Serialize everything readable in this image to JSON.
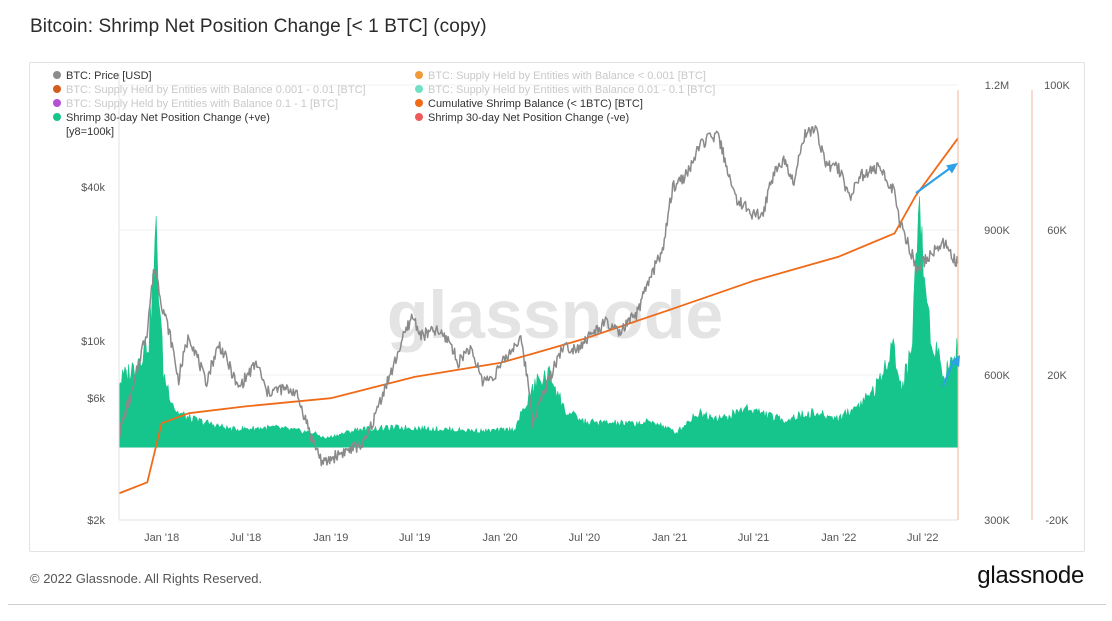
{
  "page": {
    "title": "Bitcoin: Shrimp Net Position Change [< 1 BTC] (copy)",
    "footer_copyright": "© 2022 Glassnode. All Rights Reserved.",
    "footer_logo": "glassnode"
  },
  "colors": {
    "price": "#8a8a8a",
    "cumulative": "#f06a18",
    "positive": "#16c58c",
    "negative": "#ef5b5b",
    "axis_line": "#f3b39a",
    "arrow": "#2f9fe6"
  },
  "legend": [
    {
      "label": "BTC: Price [USD]",
      "color": "#8c8c8c",
      "faded": false
    },
    {
      "label": "BTC: Supply Held by Entities with Balance < 0.001 [BTC]",
      "color": "#f29a3b",
      "faded": true
    },
    {
      "label": "BTC: Supply Held by Entities with Balance 0.001 - 0.01 [BTC]",
      "color": "#d45c1c",
      "faded": true
    },
    {
      "label": "BTC: Supply Held by Entities with Balance 0.01 - 0.1 [BTC]",
      "color": "#6fe0c3",
      "faded": true
    },
    {
      "label": "BTC: Supply Held by Entities with Balance 0.1 - 1 [BTC]",
      "color": "#b54fd6",
      "faded": true
    },
    {
      "label": "Cumulative Shrimp Balance (< 1BTC) [BTC]",
      "color": "#f06a18",
      "faded": false
    },
    {
      "label": "Shrimp 30-day Net Position Change (+ve)",
      "color": "#16c58c",
      "faded": false
    },
    {
      "label": "Shrimp 30-day Net Position Change (-ve)",
      "color": "#ef5b5b",
      "faded": false
    }
  ],
  "legend_note": "[y8=100k]",
  "watermark": "glassnode",
  "chart_data": {
    "type": "line",
    "x_ticks": [
      "Jan '18",
      "Jul '18",
      "Jan '19",
      "Jul '19",
      "Jan '20",
      "Jul '20",
      "Jan '21",
      "Jul '21",
      "Jan '22",
      "Jul '22"
    ],
    "x_tick_dates": [
      "2018-01-01",
      "2018-07-01",
      "2019-01-01",
      "2019-07-01",
      "2020-01-01",
      "2020-07-01",
      "2021-01-01",
      "2021-07-01",
      "2022-01-01",
      "2022-07-01"
    ],
    "x_range": [
      "2017-10-01",
      "2022-09-15"
    ],
    "axes": {
      "price": {
        "scale": "log",
        "range": [
          2000,
          100000
        ],
        "ticks": [
          2000,
          6000,
          10000,
          40000
        ],
        "tick_labels": [
          "$2k",
          "$6k",
          "$10k",
          "$40k"
        ]
      },
      "cumulative": {
        "scale": "linear",
        "range": [
          300000,
          1200000
        ],
        "ticks": [
          300000,
          600000,
          900000,
          1200000
        ],
        "tick_labels": [
          "300K",
          "600K",
          "900K",
          "1.2M"
        ]
      },
      "net_change": {
        "scale": "linear",
        "range": [
          -20000,
          100000
        ],
        "ticks": [
          -20000,
          20000,
          60000,
          100000
        ],
        "tick_labels": [
          "-20K",
          "20K",
          "60K",
          "100K"
        ]
      }
    },
    "series": [
      {
        "name": "BTC: Price [USD]",
        "axis": "price",
        "x": [
          "2017-10-01",
          "2017-11-01",
          "2017-12-01",
          "2017-12-17",
          "2018-01-01",
          "2018-02-06",
          "2018-03-01",
          "2018-04-06",
          "2018-05-05",
          "2018-06-15",
          "2018-07-25",
          "2018-08-15",
          "2018-09-15",
          "2018-10-15",
          "2018-11-20",
          "2018-12-15",
          "2019-01-15",
          "2019-02-15",
          "2019-03-15",
          "2019-04-05",
          "2019-05-15",
          "2019-06-26",
          "2019-07-15",
          "2019-08-15",
          "2019-09-15",
          "2019-10-01",
          "2019-10-26",
          "2019-11-25",
          "2019-12-15",
          "2020-01-15",
          "2020-02-13",
          "2020-03-12",
          "2020-04-15",
          "2020-05-15",
          "2020-06-15",
          "2020-07-27",
          "2020-08-15",
          "2020-09-15",
          "2020-10-25",
          "2020-11-25",
          "2020-12-20",
          "2021-01-08",
          "2021-02-08",
          "2021-03-13",
          "2021-04-14",
          "2021-05-19",
          "2021-06-22",
          "2021-07-20",
          "2021-08-15",
          "2021-09-07",
          "2021-09-25",
          "2021-10-20",
          "2021-11-10",
          "2021-12-05",
          "2022-01-01",
          "2022-01-24",
          "2022-02-15",
          "2022-03-29",
          "2022-04-30",
          "2022-05-12",
          "2022-06-18",
          "2022-07-15",
          "2022-08-14",
          "2022-09-15"
        ],
        "values": [
          4300,
          6500,
          11000,
          19500,
          14000,
          7000,
          10500,
          6800,
          9700,
          6500,
          8200,
          6300,
          6500,
          6400,
          4200,
          3300,
          3600,
          3800,
          4000,
          5000,
          7800,
          12500,
          10500,
          11000,
          10000,
          8200,
          9400,
          7000,
          7200,
          8600,
          10300,
          4800,
          7000,
          9500,
          9400,
          11000,
          11800,
          10700,
          13000,
          18500,
          23500,
          40000,
          45000,
          60000,
          63500,
          37000,
          32000,
          30500,
          46000,
          51000,
          42000,
          64000,
          68000,
          49000,
          47000,
          36500,
          44000,
          47500,
          38500,
          29000,
          19000,
          21500,
          24300,
          20000
        ]
      },
      {
        "name": "Cumulative Shrimp Balance (< 1BTC) [BTC]",
        "axis": "cumulative",
        "x": [
          "2017-10-01",
          "2017-12-01",
          "2018-01-01",
          "2018-03-01",
          "2018-07-01",
          "2019-01-01",
          "2019-07-01",
          "2020-01-01",
          "2020-03-15",
          "2020-07-01",
          "2021-01-01",
          "2021-07-01",
          "2022-01-01",
          "2022-05-01",
          "2022-06-15",
          "2022-09-15"
        ],
        "values": [
          355000,
          378000,
          500000,
          521000,
          535000,
          552000,
          596000,
          625000,
          645000,
          675000,
          735000,
          795000,
          845000,
          893000,
          970000,
          1090000
        ]
      },
      {
        "name": "Shrimp 30-day Net Position Change (+ve)",
        "axis": "net_change",
        "x": [
          "2017-10-01",
          "2017-11-01",
          "2017-12-05",
          "2017-12-20",
          "2018-01-05",
          "2018-02-01",
          "2018-03-01",
          "2018-06-01",
          "2018-09-01",
          "2018-11-25",
          "2018-12-20",
          "2019-03-01",
          "2019-06-01",
          "2019-09-01",
          "2019-12-01",
          "2020-02-01",
          "2020-03-20",
          "2020-04-20",
          "2020-05-20",
          "2020-07-01",
          "2020-10-01",
          "2020-12-01",
          "2021-01-15",
          "2021-03-01",
          "2021-05-01",
          "2021-06-15",
          "2021-09-01",
          "2021-11-01",
          "2022-01-01",
          "2022-02-15",
          "2022-04-01",
          "2022-04-25",
          "2022-05-15",
          "2022-06-05",
          "2022-06-22",
          "2022-07-15",
          "2022-08-15",
          "2022-09-15"
        ],
        "values": [
          18000,
          22000,
          30000,
          58000,
          20000,
          10000,
          8000,
          5000,
          5500,
          4000,
          2500,
          5000,
          5500,
          5000,
          4500,
          5000,
          18000,
          20000,
          10000,
          7000,
          6500,
          7000,
          4000,
          9500,
          8000,
          11000,
          7500,
          9500,
          8000,
          12000,
          18000,
          30000,
          16000,
          25000,
          65000,
          34000,
          20000,
          27000
        ]
      },
      {
        "name": "Shrimp 30-day Net Position Change (-ve)",
        "axis": "net_change",
        "x": [],
        "values": []
      }
    ],
    "grid": "horizontal",
    "legend_position": "top-left"
  }
}
